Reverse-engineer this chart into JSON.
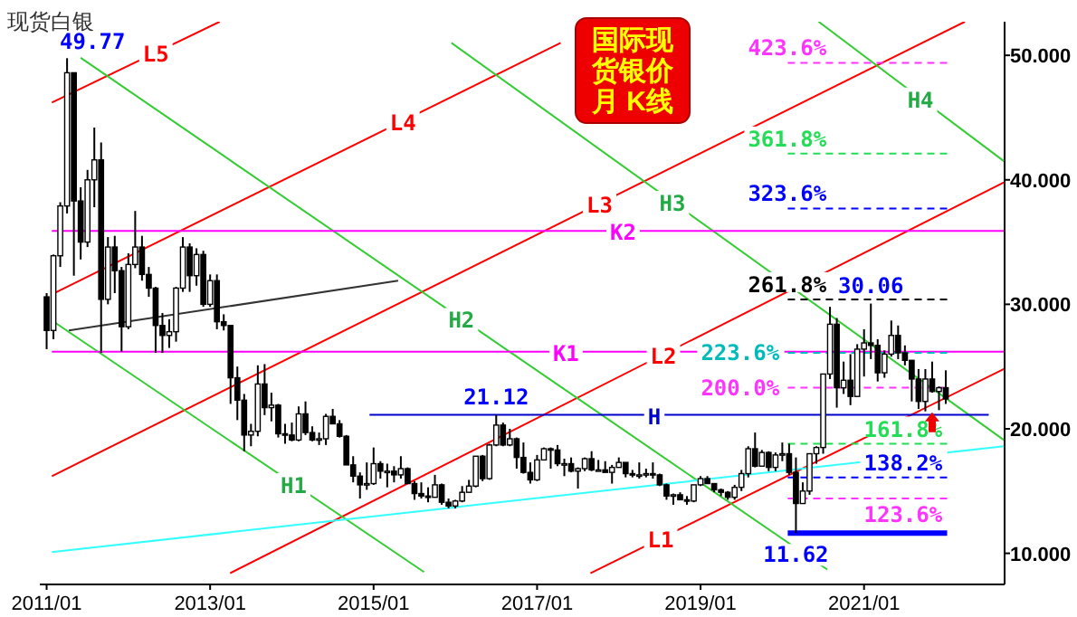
{
  "chart_data": {
    "type": "candlestick",
    "title": "国际现货银价月 K线",
    "annotations": [
      "现货白银",
      {
        "text": "49.77",
        "x": "2011-04",
        "y": 49.77
      },
      {
        "text": "30.06",
        "x": "2021-02",
        "y": 30.06
      },
      {
        "text": "21.12",
        "x": "2016-07",
        "y": 21.12
      },
      {
        "text": "11.62",
        "x": "2020-03",
        "y": 11.62
      }
    ],
    "xlim": [
      "2010-12-01",
      "2022-09-20"
    ],
    "ylim": [
      7.5,
      52.7
    ],
    "xticks": [
      {
        "value": "2011-01",
        "label": "2011/01"
      },
      {
        "value": "2013-01",
        "label": "2013/01"
      },
      {
        "value": "2015-01",
        "label": "2015/01"
      },
      {
        "value": "2017-01",
        "label": "2017/01"
      },
      {
        "value": "2019-01",
        "label": "2019/01"
      },
      {
        "value": "2021-01",
        "label": "2021/01"
      }
    ],
    "yticks": [
      {
        "value": 10,
        "label": "10.000"
      },
      {
        "value": 20,
        "label": "20.000"
      },
      {
        "value": 30,
        "label": "30.000"
      },
      {
        "value": 40,
        "label": "40.000"
      },
      {
        "value": 50,
        "label": "50.000"
      }
    ],
    "x": [
      "2011-01",
      "2011-02",
      "2011-03",
      "2011-04",
      "2011-05",
      "2011-06",
      "2011-07",
      "2011-08",
      "2011-09",
      "2011-10",
      "2011-11",
      "2011-12",
      "2012-01",
      "2012-02",
      "2012-03",
      "2012-04",
      "2012-05",
      "2012-06",
      "2012-07",
      "2012-08",
      "2012-09",
      "2012-10",
      "2012-11",
      "2012-12",
      "2013-01",
      "2013-02",
      "2013-03",
      "2013-04",
      "2013-05",
      "2013-06",
      "2013-07",
      "2013-08",
      "2013-09",
      "2013-10",
      "2013-11",
      "2013-12",
      "2014-01",
      "2014-02",
      "2014-03",
      "2014-04",
      "2014-05",
      "2014-06",
      "2014-07",
      "2014-08",
      "2014-09",
      "2014-10",
      "2014-11",
      "2014-12",
      "2015-01",
      "2015-02",
      "2015-03",
      "2015-04",
      "2015-05",
      "2015-06",
      "2015-07",
      "2015-08",
      "2015-09",
      "2015-10",
      "2015-11",
      "2015-12",
      "2016-01",
      "2016-02",
      "2016-03",
      "2016-04",
      "2016-05",
      "2016-06",
      "2016-07",
      "2016-08",
      "2016-09",
      "2016-10",
      "2016-11",
      "2016-12",
      "2017-01",
      "2017-02",
      "2017-03",
      "2017-04",
      "2017-05",
      "2017-06",
      "2017-07",
      "2017-08",
      "2017-09",
      "2017-10",
      "2017-11",
      "2017-12",
      "2018-01",
      "2018-02",
      "2018-03",
      "2018-04",
      "2018-05",
      "2018-06",
      "2018-07",
      "2018-08",
      "2018-09",
      "2018-10",
      "2018-11",
      "2018-12",
      "2019-01",
      "2019-02",
      "2019-03",
      "2019-04",
      "2019-05",
      "2019-06",
      "2019-07",
      "2019-08",
      "2019-09",
      "2019-10",
      "2019-11",
      "2019-12",
      "2020-01",
      "2020-02",
      "2020-03",
      "2020-04",
      "2020-05",
      "2020-06",
      "2020-07",
      "2020-08",
      "2020-09",
      "2020-10",
      "2020-11",
      "2020-12",
      "2021-01",
      "2021-02",
      "2021-03",
      "2021-04",
      "2021-05",
      "2021-06",
      "2021-07",
      "2021-08",
      "2021-09",
      "2021-10",
      "2021-11",
      "2021-12",
      "2022-01"
    ],
    "ohlc": [
      [
        30.6,
        30.9,
        26.4,
        27.9
      ],
      [
        27.9,
        34.0,
        27.2,
        33.9
      ],
      [
        33.9,
        38.2,
        33.0,
        37.9
      ],
      [
        37.9,
        49.77,
        37.3,
        48.6
      ],
      [
        48.6,
        48.6,
        32.3,
        38.3
      ],
      [
        38.3,
        39.4,
        33.6,
        35.0
      ],
      [
        35.0,
        40.8,
        34.6,
        40.0
      ],
      [
        40.0,
        44.2,
        37.8,
        41.6
      ],
      [
        41.6,
        43.0,
        26.1,
        30.4
      ],
      [
        30.4,
        35.4,
        30.0,
        34.6
      ],
      [
        34.6,
        35.5,
        30.9,
        32.7
      ],
      [
        32.7,
        33.0,
        26.2,
        28.2
      ],
      [
        28.2,
        34.1,
        28.0,
        33.2
      ],
      [
        33.2,
        37.5,
        32.9,
        34.6
      ],
      [
        34.6,
        35.5,
        31.9,
        32.4
      ],
      [
        32.4,
        33.0,
        30.6,
        31.3
      ],
      [
        31.3,
        31.4,
        26.1,
        28.3
      ],
      [
        28.3,
        29.3,
        26.1,
        27.5
      ],
      [
        27.5,
        28.8,
        26.5,
        27.8
      ],
      [
        27.8,
        31.4,
        27.0,
        31.3
      ],
      [
        31.3,
        35.4,
        31.0,
        34.6
      ],
      [
        34.6,
        34.9,
        31.0,
        32.3
      ],
      [
        32.3,
        34.5,
        31.5,
        34.0
      ],
      [
        34.0,
        34.3,
        29.8,
        30.0
      ],
      [
        30.0,
        32.4,
        29.8,
        31.9
      ],
      [
        31.9,
        32.4,
        28.0,
        28.6
      ],
      [
        28.6,
        29.2,
        27.9,
        28.3
      ],
      [
        28.3,
        28.3,
        22.0,
        24.1
      ],
      [
        24.1,
        25.0,
        20.7,
        22.3
      ],
      [
        22.3,
        22.8,
        18.2,
        19.5
      ],
      [
        19.5,
        20.4,
        18.6,
        19.8
      ],
      [
        19.8,
        25.1,
        19.4,
        23.6
      ],
      [
        23.6,
        25.2,
        21.1,
        21.7
      ],
      [
        21.7,
        22.9,
        20.6,
        21.9
      ],
      [
        21.9,
        22.0,
        19.3,
        19.6
      ],
      [
        19.6,
        20.4,
        18.8,
        19.5
      ],
      [
        19.5,
        20.5,
        19.0,
        19.1
      ],
      [
        19.1,
        21.8,
        19.0,
        21.2
      ],
      [
        21.2,
        22.2,
        19.5,
        19.7
      ],
      [
        19.7,
        20.2,
        19.0,
        19.1
      ],
      [
        19.1,
        19.7,
        18.7,
        19.2
      ],
      [
        19.2,
        21.2,
        18.7,
        21.0
      ],
      [
        21.0,
        21.6,
        20.4,
        20.4
      ],
      [
        20.4,
        20.7,
        19.3,
        19.4
      ],
      [
        19.4,
        19.5,
        17.1,
        17.1
      ],
      [
        17.1,
        17.8,
        15.7,
        16.2
      ],
      [
        16.2,
        16.5,
        14.4,
        15.5
      ],
      [
        15.5,
        17.3,
        15.1,
        15.6
      ],
      [
        15.6,
        18.5,
        15.5,
        17.2
      ],
      [
        17.2,
        17.4,
        16.0,
        16.6
      ],
      [
        16.6,
        17.2,
        15.3,
        16.6
      ],
      [
        16.6,
        17.0,
        15.7,
        16.3
      ],
      [
        16.3,
        17.8,
        16.0,
        16.8
      ],
      [
        16.8,
        16.9,
        15.6,
        15.6
      ],
      [
        15.6,
        15.8,
        14.3,
        14.8
      ],
      [
        14.8,
        15.7,
        14.4,
        14.6
      ],
      [
        14.6,
        15.3,
        14.1,
        14.5
      ],
      [
        14.5,
        16.3,
        14.5,
        15.5
      ],
      [
        15.5,
        15.6,
        13.9,
        14.1
      ],
      [
        14.1,
        14.4,
        13.6,
        13.8
      ],
      [
        13.8,
        14.3,
        13.6,
        14.2
      ],
      [
        14.2,
        15.4,
        14.1,
        14.9
      ],
      [
        14.9,
        15.9,
        14.9,
        15.4
      ],
      [
        15.4,
        17.8,
        15.3,
        17.8
      ],
      [
        17.8,
        17.9,
        15.8,
        16.0
      ],
      [
        16.0,
        18.8,
        15.9,
        18.7
      ],
      [
        18.7,
        21.12,
        18.6,
        20.3
      ],
      [
        20.3,
        20.5,
        18.6,
        18.7
      ],
      [
        18.7,
        20.0,
        18.6,
        19.2
      ],
      [
        19.2,
        19.3,
        16.8,
        17.7
      ],
      [
        17.7,
        18.9,
        16.4,
        16.5
      ],
      [
        16.5,
        17.3,
        15.6,
        15.9
      ],
      [
        15.9,
        17.9,
        15.8,
        17.5
      ],
      [
        17.5,
        18.5,
        17.5,
        18.4
      ],
      [
        18.4,
        18.5,
        16.8,
        18.3
      ],
      [
        18.3,
        18.7,
        17.0,
        17.2
      ],
      [
        17.2,
        17.6,
        16.2,
        17.2
      ],
      [
        17.2,
        17.7,
        16.5,
        16.6
      ],
      [
        16.6,
        16.9,
        15.2,
        16.8
      ],
      [
        16.8,
        17.7,
        16.6,
        17.6
      ],
      [
        17.6,
        18.2,
        16.6,
        16.7
      ],
      [
        16.7,
        17.5,
        16.6,
        16.7
      ],
      [
        16.7,
        17.4,
        16.5,
        16.5
      ],
      [
        16.5,
        17.1,
        15.6,
        16.9
      ],
      [
        16.9,
        17.7,
        16.9,
        17.3
      ],
      [
        17.3,
        17.3,
        16.1,
        16.4
      ],
      [
        16.4,
        16.7,
        16.1,
        16.3
      ],
      [
        16.3,
        17.3,
        16.0,
        16.3
      ],
      [
        16.3,
        16.8,
        16.1,
        16.4
      ],
      [
        16.4,
        17.3,
        16.0,
        16.3
      ],
      [
        16.3,
        16.4,
        15.4,
        15.5
      ],
      [
        15.5,
        15.6,
        14.3,
        14.6
      ],
      [
        14.6,
        14.8,
        13.9,
        14.7
      ],
      [
        14.7,
        14.9,
        14.3,
        14.3
      ],
      [
        14.3,
        14.6,
        13.9,
        14.2
      ],
      [
        14.2,
        15.5,
        14.1,
        15.5
      ],
      [
        15.5,
        16.2,
        15.4,
        16.0
      ],
      [
        16.0,
        16.2,
        15.6,
        15.6
      ],
      [
        15.6,
        15.6,
        14.9,
        15.1
      ],
      [
        15.1,
        15.2,
        14.6,
        14.9
      ],
      [
        14.9,
        15.0,
        14.3,
        14.5
      ],
      [
        14.5,
        15.5,
        14.3,
        15.3
      ],
      [
        15.3,
        16.7,
        15.0,
        16.4
      ],
      [
        16.4,
        18.6,
        16.1,
        18.4
      ],
      [
        18.4,
        19.7,
        16.9,
        17.0
      ],
      [
        17.0,
        18.3,
        17.0,
        18.1
      ],
      [
        18.1,
        18.2,
        16.6,
        16.9
      ],
      [
        16.9,
        18.1,
        16.6,
        17.9
      ],
      [
        17.9,
        18.9,
        17.4,
        18.0
      ],
      [
        18.0,
        18.8,
        16.3,
        16.5
      ],
      [
        16.5,
        17.7,
        11.62,
        14.0
      ],
      [
        14.0,
        15.7,
        14.0,
        15.0
      ],
      [
        15.0,
        18.0,
        14.7,
        18.0
      ],
      [
        18.0,
        18.6,
        17.2,
        18.5
      ],
      [
        18.5,
        24.4,
        18.0,
        24.4
      ],
      [
        24.4,
        29.8,
        24.0,
        28.4
      ],
      [
        28.4,
        28.9,
        21.7,
        23.3
      ],
      [
        23.3,
        25.4,
        22.8,
        23.9
      ],
      [
        23.9,
        26.0,
        21.9,
        22.6
      ],
      [
        22.6,
        26.8,
        22.6,
        26.4
      ],
      [
        26.4,
        28.0,
        24.2,
        26.9
      ],
      [
        26.9,
        30.06,
        25.6,
        26.7
      ],
      [
        26.7,
        27.2,
        23.8,
        24.5
      ],
      [
        24.5,
        26.3,
        24.1,
        26.0
      ],
      [
        26.0,
        28.7,
        25.8,
        27.5
      ],
      [
        27.5,
        28.3,
        25.6,
        26.1
      ],
      [
        26.1,
        26.7,
        25.1,
        25.5
      ],
      [
        25.5,
        25.5,
        22.2,
        24.0
      ],
      [
        24.0,
        24.8,
        21.6,
        22.2
      ],
      [
        22.2,
        24.8,
        21.4,
        24.0
      ],
      [
        24.0,
        25.4,
        22.9,
        23.0
      ],
      [
        23.0,
        23.4,
        21.5,
        23.3
      ],
      [
        23.3,
        24.7,
        22.0,
        22.4
      ]
    ],
    "series": [
      {
        "type": "line",
        "name": "L5",
        "color": "#ff0000",
        "x": [
          "2011-01-24",
          "2013-02-13"
        ],
        "values": [
          46.2,
          52.7
        ]
      },
      {
        "type": "line",
        "name": "L4",
        "color": "#ff0000",
        "x": [
          "2011-01-24",
          "2017-04-15"
        ],
        "values": [
          30.8,
          51.0
        ]
      },
      {
        "type": "line",
        "name": "L3",
        "color": "#ff0000",
        "x": [
          "2011-01-24",
          "2022-03-25"
        ],
        "values": [
          16.2,
          52.7
        ]
      },
      {
        "type": "line",
        "name": "L2",
        "color": "#ff0000",
        "x": [
          "2013-03-29",
          "2022-09-17"
        ],
        "values": [
          8.4,
          39.8
        ]
      },
      {
        "type": "line",
        "name": "L1",
        "color": "#ff0000",
        "x": [
          "2017-08-26",
          "2022-09-17"
        ],
        "values": [
          8.4,
          24.8
        ]
      },
      {
        "type": "line",
        "name": "H4",
        "color": "#33cc33",
        "x": [
          "2020-06-11",
          "2022-09-17"
        ],
        "values": [
          52.7,
          41.5
        ]
      },
      {
        "type": "line",
        "name": "H3",
        "color": "#33cc33",
        "x": [
          "2015-12-14",
          "2022-09-17"
        ],
        "values": [
          51.0,
          19.1
        ]
      },
      {
        "type": "line",
        "name": "H2",
        "color": "#33cc33",
        "x": [
          "2011-06-01",
          "2020-07-19"
        ],
        "values": [
          49.8,
          8.7
        ]
      },
      {
        "type": "line",
        "name": "H1",
        "color": "#33cc33",
        "x": [
          "2011-01-24",
          "2015-08-13"
        ],
        "values": [
          28.7,
          8.5
        ]
      },
      {
        "type": "line",
        "color": "#33ffff",
        "x": [
          "2011-01-24",
          "2022-09-17"
        ],
        "values": [
          10.1,
          18.6
        ]
      },
      {
        "type": "line",
        "color": "#333333",
        "x": [
          "2011-04-09",
          "2015-04-19"
        ],
        "values": [
          27.9,
          31.9
        ]
      },
      {
        "type": "line",
        "name": "K2",
        "color": "#ff00ff",
        "x": [
          "2011-01-24",
          "2022-09-17"
        ],
        "values": [
          35.9,
          35.9
        ]
      },
      {
        "type": "line",
        "name": "K1",
        "color": "#ff00ff",
        "x": [
          "2011-01-24",
          "2022-09-17"
        ],
        "values": [
          26.2,
          26.2
        ]
      },
      {
        "type": "line",
        "name": "H",
        "color": "#0000cc",
        "x": [
          "2014-12-13",
          "2022-07-10"
        ],
        "values": [
          21.12,
          21.12
        ]
      },
      {
        "type": "line",
        "name": "423.6%",
        "color": "#ff33ff",
        "line_style": "dashed",
        "x": [
          "2020-01-25",
          "2022-01-07"
        ],
        "values": [
          49.4,
          49.4
        ]
      },
      {
        "type": "line",
        "name": "361.8%",
        "color": "#22dd55",
        "line_style": "dashed",
        "x": [
          "2020-01-25",
          "2022-01-07"
        ],
        "values": [
          42.1,
          42.1
        ]
      },
      {
        "type": "line",
        "name": "323.6%",
        "color": "#0000ff",
        "line_style": "dashed",
        "x": [
          "2020-01-25",
          "2022-01-07"
        ],
        "values": [
          37.7,
          37.7
        ]
      },
      {
        "type": "line",
        "name": "261.8%",
        "color": "#000000",
        "line_style": "dashed",
        "x": [
          "2020-01-25",
          "2022-01-07"
        ],
        "values": [
          30.4,
          30.4
        ]
      },
      {
        "type": "line",
        "name": "223.6%",
        "color": "#00bbbb",
        "line_style": "dashed",
        "x": [
          "2020-01-25",
          "2022-01-07"
        ],
        "values": [
          26.1,
          26.1
        ]
      },
      {
        "type": "line",
        "name": "200.0%",
        "color": "#ff33ff",
        "line_style": "dashed",
        "x": [
          "2020-01-25",
          "2022-01-07"
        ],
        "values": [
          23.3,
          23.3
        ]
      },
      {
        "type": "line",
        "name": "161.8%",
        "color": "#22dd55",
        "line_style": "dashed",
        "x": [
          "2020-01-25",
          "2022-01-07"
        ],
        "values": [
          18.8,
          18.8
        ]
      },
      {
        "type": "line",
        "name": "138.2%",
        "color": "#0000ff",
        "line_style": "dashed",
        "x": [
          "2020-01-25",
          "2022-01-07"
        ],
        "values": [
          16.1,
          16.1
        ]
      },
      {
        "type": "line",
        "name": "123.6%",
        "color": "#ff33ff",
        "line_style": "dashed",
        "x": [
          "2020-01-25",
          "2022-01-07"
        ],
        "values": [
          14.4,
          14.4
        ]
      },
      {
        "type": "line",
        "color": "#0000ff",
        "x": [
          "2020-01-25",
          "2022-01-07"
        ],
        "values": [
          11.62,
          11.62
        ]
      }
    ]
  }
}
